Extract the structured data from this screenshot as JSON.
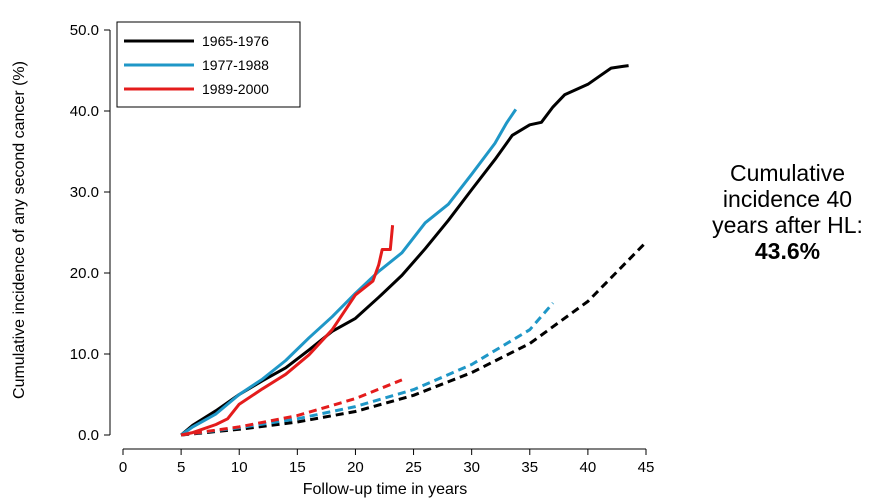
{
  "chart_data": {
    "type": "line",
    "title": "",
    "xlabel": "Follow-up time in years",
    "ylabel": "Cumulative incidence of any second cancer (%)",
    "xlim": [
      0,
      45
    ],
    "ylim": [
      0,
      50
    ],
    "x_ticks": [
      "0",
      "5",
      "10",
      "15",
      "20",
      "25",
      "30",
      "35",
      "40",
      "45"
    ],
    "y_ticks": [
      "0.0",
      "10.0",
      "20.0",
      "30.0",
      "40.0",
      "50.0"
    ],
    "grid": false,
    "legend_position": "top-left",
    "series": [
      {
        "name": "1965-1976",
        "color": "#000000",
        "style": "solid",
        "points": [
          [
            5,
            0
          ],
          [
            6,
            1.2
          ],
          [
            8,
            3.0
          ],
          [
            10,
            5.0
          ],
          [
            12,
            6.7
          ],
          [
            14,
            8.3
          ],
          [
            16,
            10.5
          ],
          [
            18,
            12.8
          ],
          [
            20,
            14.4
          ],
          [
            22,
            17.0
          ],
          [
            24,
            19.7
          ],
          [
            26,
            23.0
          ],
          [
            28,
            26.5
          ],
          [
            30,
            30.3
          ],
          [
            32,
            34.0
          ],
          [
            33.5,
            37.0
          ],
          [
            35,
            38.3
          ],
          [
            36,
            38.6
          ],
          [
            37,
            40.5
          ],
          [
            38,
            42.0
          ],
          [
            40,
            43.3
          ],
          [
            41,
            44.3
          ],
          [
            42,
            45.3
          ],
          [
            43,
            45.5
          ],
          [
            43.5,
            45.6
          ]
        ]
      },
      {
        "name": "1977-1988",
        "color": "#1f97c7",
        "style": "solid",
        "points": [
          [
            5,
            0
          ],
          [
            6,
            1.0
          ],
          [
            8,
            2.6
          ],
          [
            10,
            5.0
          ],
          [
            12,
            6.9
          ],
          [
            14,
            9.2
          ],
          [
            16,
            12.0
          ],
          [
            18,
            14.6
          ],
          [
            20,
            17.5
          ],
          [
            22,
            20.2
          ],
          [
            24,
            22.5
          ],
          [
            26,
            26.2
          ],
          [
            28,
            28.5
          ],
          [
            30,
            32.2
          ],
          [
            32,
            36.0
          ],
          [
            33,
            38.5
          ],
          [
            33.8,
            40.2
          ]
        ]
      },
      {
        "name": "1989-2000",
        "color": "#e41c1c",
        "style": "solid",
        "points": [
          [
            5,
            0
          ],
          [
            6,
            0.3
          ],
          [
            8,
            1.3
          ],
          [
            9,
            2.0
          ],
          [
            10,
            3.8
          ],
          [
            12,
            5.7
          ],
          [
            14,
            7.5
          ],
          [
            16,
            9.9
          ],
          [
            18,
            13.0
          ],
          [
            20,
            17.3
          ],
          [
            21.5,
            19.0
          ],
          [
            22,
            21.0
          ],
          [
            22.3,
            22.9
          ],
          [
            23,
            22.9
          ],
          [
            23.2,
            25.9
          ]
        ]
      },
      {
        "name": "1965-1976 expected",
        "color": "#000000",
        "style": "dashed",
        "points": [
          [
            5,
            0
          ],
          [
            10,
            0.7
          ],
          [
            15,
            1.6
          ],
          [
            20,
            2.9
          ],
          [
            25,
            4.9
          ],
          [
            30,
            7.7
          ],
          [
            35,
            11.3
          ],
          [
            40,
            16.5
          ],
          [
            45,
            23.8
          ]
        ]
      },
      {
        "name": "1977-1988 expected",
        "color": "#1f97c7",
        "style": "dashed",
        "points": [
          [
            5,
            0
          ],
          [
            10,
            0.9
          ],
          [
            15,
            2.0
          ],
          [
            20,
            3.5
          ],
          [
            25,
            5.6
          ],
          [
            30,
            8.7
          ],
          [
            35,
            13.0
          ],
          [
            37,
            16.3
          ]
        ]
      },
      {
        "name": "1989-2000 expected",
        "color": "#e41c1c",
        "style": "dashed",
        "points": [
          [
            5,
            0
          ],
          [
            10,
            1.0
          ],
          [
            15,
            2.4
          ],
          [
            20,
            4.5
          ],
          [
            24,
            6.8
          ]
        ]
      }
    ],
    "legend": [
      {
        "label": "1965-1976",
        "color": "#000000"
      },
      {
        "label": "1977-1988",
        "color": "#1f97c7"
      },
      {
        "label": "1989-2000",
        "color": "#e41c1c"
      }
    ]
  },
  "annotation": {
    "text": "Cumulative incidence 40 years after HL:",
    "value": "43.6%"
  }
}
